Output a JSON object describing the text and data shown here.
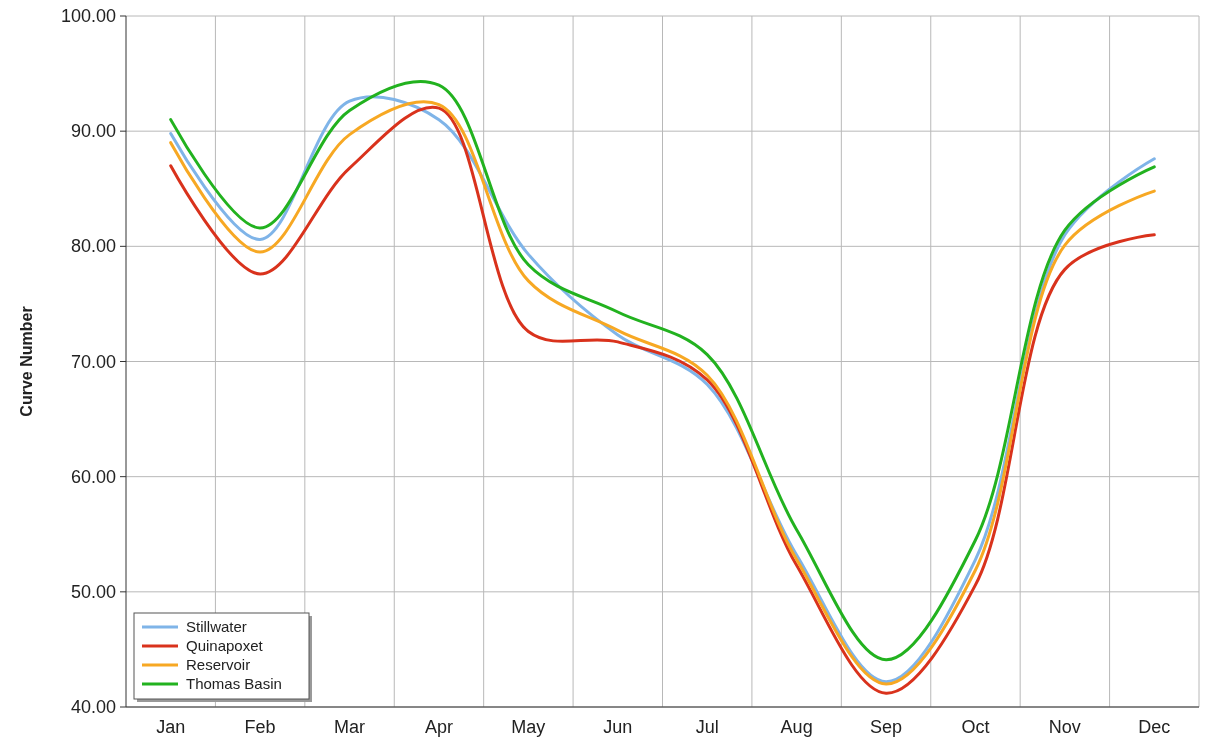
{
  "chart_data": {
    "type": "line",
    "ylabel": "Curve Number",
    "categories": [
      "Jan",
      "Feb",
      "Mar",
      "Apr",
      "May",
      "Jun",
      "Jul",
      "Aug",
      "Sep",
      "Oct",
      "Nov",
      "Dec"
    ],
    "series": [
      {
        "name": "Stillwater",
        "color": "#7fb4e8",
        "values": [
          89.8,
          80.6,
          92.6,
          91.0,
          79.3,
          72.3,
          68.0,
          53.2,
          42.2,
          52.8,
          81.0,
          87.6
        ]
      },
      {
        "name": "Quinapoxet",
        "color": "#d9321c",
        "values": [
          87.0,
          77.6,
          86.8,
          92.0,
          72.6,
          71.7,
          68.4,
          52.3,
          41.2,
          50.6,
          78.0,
          81.0
        ]
      },
      {
        "name": "Reservoir",
        "color": "#f7a823",
        "values": [
          89.0,
          79.5,
          89.7,
          92.3,
          77.0,
          72.7,
          68.8,
          52.8,
          42.0,
          51.9,
          80.1,
          84.8
        ]
      },
      {
        "name": "Thomas Basin",
        "color": "#22b21f",
        "values": [
          91.0,
          81.6,
          91.8,
          94.0,
          78.4,
          74.3,
          70.6,
          55.4,
          44.1,
          54.5,
          81.4,
          86.9
        ]
      }
    ],
    "ylim": [
      40,
      100
    ],
    "yticks": [
      {
        "value": 40,
        "label": "40.00"
      },
      {
        "value": 50,
        "label": "50.00"
      },
      {
        "value": 60,
        "label": "60.00"
      },
      {
        "value": 70,
        "label": "70.00"
      },
      {
        "value": 80,
        "label": "80.00"
      },
      {
        "value": 90,
        "label": "90.00"
      },
      {
        "value": 100,
        "label": "100.00"
      }
    ],
    "grid": true,
    "legend": "bottom left",
    "marker": "none",
    "line_style": "solid"
  }
}
